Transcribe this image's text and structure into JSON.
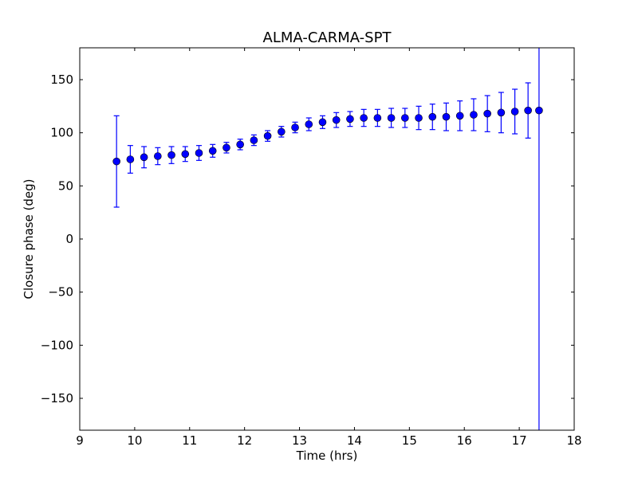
{
  "chart_data": {
    "type": "scatter",
    "title": "ALMA-CARMA-SPT",
    "xlabel": "Time (hrs)",
    "ylabel": "Closure phase (deg)",
    "xlim": [
      9,
      18
    ],
    "ylim": [
      -180,
      180
    ],
    "xticks": [
      9,
      10,
      11,
      12,
      13,
      14,
      15,
      16,
      17,
      18
    ],
    "xtick_labels": [
      "9",
      "10",
      "11",
      "12",
      "13",
      "14",
      "15",
      "16",
      "17",
      "18"
    ],
    "yticks": [
      -150,
      -100,
      -50,
      0,
      50,
      100,
      150
    ],
    "ytick_labels": [
      "−150",
      "−100",
      "−50",
      "0",
      "50",
      "100",
      "150"
    ],
    "grid": false,
    "color": "#0000ff",
    "series": [
      {
        "name": "closure phase",
        "x": [
          9.67,
          9.92,
          10.17,
          10.42,
          10.67,
          10.92,
          11.17,
          11.42,
          11.67,
          11.92,
          12.17,
          12.42,
          12.67,
          12.92,
          13.17,
          13.42,
          13.67,
          13.92,
          14.17,
          14.42,
          14.67,
          14.92,
          15.17,
          15.42,
          15.67,
          15.92,
          16.17,
          16.42,
          16.67,
          16.92,
          17.16,
          17.36
        ],
        "y": [
          73,
          75,
          77,
          78,
          79,
          80,
          81,
          83,
          86,
          89,
          93,
          97,
          101,
          105,
          108,
          110,
          112,
          113,
          114,
          114,
          114,
          114,
          114,
          115,
          115,
          116,
          117,
          118,
          119,
          120,
          121,
          121
        ],
        "yerr": [
          43,
          13,
          10,
          8,
          8,
          7,
          7,
          6,
          5,
          5,
          5,
          5,
          5,
          5,
          6,
          6,
          7,
          7,
          8,
          8,
          9,
          9,
          11,
          12,
          13,
          14,
          15,
          17,
          19,
          21,
          26,
          400
        ]
      }
    ]
  }
}
